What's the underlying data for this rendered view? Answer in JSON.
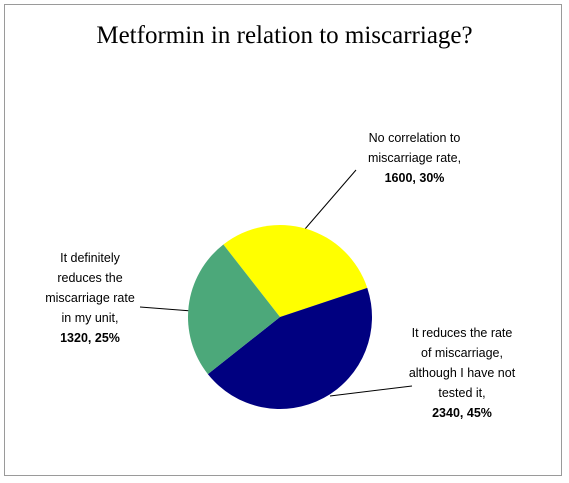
{
  "chart_data": {
    "type": "pie",
    "title": "Metformin in relation to miscarriage?",
    "categories": [
      "No correlation to miscarriage rate,",
      "It reduces the rate of miscarriage, although I have not tested it,",
      "It definitely reduces the miscarriage rate in my unit,"
    ],
    "values": [
      1600,
      2340,
      1320
    ],
    "value_labels": [
      "1600, 30%",
      "2340, 45%",
      "1320, 25%"
    ],
    "colors": [
      "#ffff00",
      "#000080",
      "#4ca87a"
    ]
  }
}
